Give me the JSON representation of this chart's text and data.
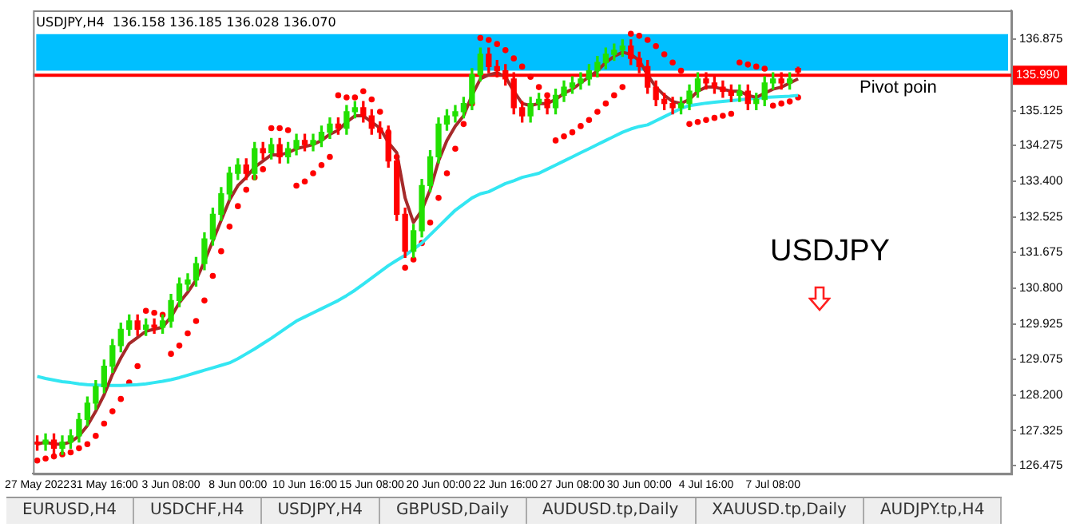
{
  "chart_data": {
    "type": "candlestick",
    "title": "USDJPY,H4  136.158 136.185 136.028 136.070",
    "categories": [
      "27 May 2022",
      null,
      null,
      null,
      null,
      null,
      null,
      null,
      "31 May 16:00",
      null,
      null,
      null,
      null,
      null,
      null,
      null,
      "3 Jun 08:00",
      null,
      null,
      null,
      null,
      null,
      null,
      null,
      "8 Jun 00:00",
      null,
      null,
      null,
      null,
      null,
      null,
      null,
      "10 Jun 16:00",
      null,
      null,
      null,
      null,
      null,
      null,
      null,
      "15 Jun 08:00",
      null,
      null,
      null,
      null,
      null,
      null,
      null,
      "20 Jun 00:00",
      null,
      null,
      null,
      null,
      null,
      null,
      null,
      "22 Jun 16:00",
      null,
      null,
      null,
      null,
      null,
      null,
      null,
      "27 Jun 08:00",
      null,
      null,
      null,
      null,
      null,
      null,
      null,
      "30 Jun 00:00",
      null,
      null,
      null,
      null,
      null,
      null,
      null,
      "4 Jul 16:00",
      null,
      null,
      null,
      null,
      null,
      null,
      null,
      "7 Jul 08:00",
      null,
      null,
      null,
      null,
      null,
      null,
      null,
      null,
      null,
      null,
      null,
      null,
      null,
      null,
      null,
      null,
      null,
      null,
      null,
      null,
      null,
      null,
      null,
      null,
      null,
      null,
      null,
      null
    ],
    "ohlc": [
      [
        127.05,
        127.2,
        126.85,
        127.0
      ],
      [
        127.0,
        127.25,
        126.85,
        127.1
      ],
      [
        127.1,
        127.25,
        126.75,
        126.9
      ],
      [
        126.9,
        127.2,
        126.75,
        127.05
      ],
      [
        127.05,
        127.35,
        126.9,
        127.2
      ],
      [
        127.2,
        127.75,
        127.05,
        127.6
      ],
      [
        127.6,
        128.15,
        127.45,
        128.0
      ],
      [
        128.0,
        128.55,
        127.85,
        128.4
      ],
      [
        128.4,
        129.05,
        128.25,
        128.9
      ],
      [
        128.9,
        129.55,
        128.75,
        129.4
      ],
      [
        129.4,
        129.95,
        129.25,
        129.8
      ],
      [
        129.8,
        130.15,
        129.65,
        130.0
      ],
      [
        130.0,
        130.15,
        129.65,
        129.8
      ],
      [
        129.8,
        130.05,
        129.65,
        129.9
      ],
      [
        129.9,
        130.05,
        129.7,
        129.85
      ],
      [
        129.85,
        130.15,
        129.7,
        130.0
      ],
      [
        130.0,
        130.65,
        129.85,
        130.5
      ],
      [
        130.5,
        131.05,
        130.35,
        130.9
      ],
      [
        130.9,
        131.15,
        130.75,
        131.0
      ],
      [
        131.0,
        131.55,
        130.85,
        131.4
      ],
      [
        131.4,
        132.15,
        131.25,
        132.0
      ],
      [
        132.0,
        132.75,
        131.85,
        132.6
      ],
      [
        132.6,
        133.25,
        132.45,
        133.1
      ],
      [
        133.1,
        133.75,
        132.95,
        133.6
      ],
      [
        133.6,
        133.95,
        133.45,
        133.8
      ],
      [
        133.8,
        133.95,
        133.45,
        133.6
      ],
      [
        133.6,
        134.35,
        133.45,
        134.2
      ],
      [
        134.2,
        134.35,
        133.95,
        134.1
      ],
      [
        134.1,
        134.45,
        133.95,
        134.3
      ],
      [
        134.3,
        134.45,
        133.85,
        134.0
      ],
      [
        134.0,
        134.35,
        133.85,
        134.2
      ],
      [
        134.2,
        134.55,
        134.05,
        134.4
      ],
      [
        134.4,
        134.55,
        134.15,
        134.3
      ],
      [
        134.3,
        134.55,
        134.15,
        134.4
      ],
      [
        134.4,
        134.75,
        134.25,
        134.6
      ],
      [
        134.6,
        134.95,
        134.45,
        134.8
      ],
      [
        134.8,
        134.95,
        134.55,
        134.7
      ],
      [
        134.7,
        135.25,
        134.55,
        135.1
      ],
      [
        135.1,
        135.35,
        134.95,
        135.2
      ],
      [
        135.2,
        135.35,
        134.85,
        135.0
      ],
      [
        135.0,
        135.15,
        134.55,
        134.7
      ],
      [
        134.7,
        134.85,
        134.45,
        134.6
      ],
      [
        134.6,
        134.75,
        133.75,
        133.9
      ],
      [
        133.9,
        134.05,
        132.45,
        132.6
      ],
      [
        132.6,
        132.75,
        131.55,
        131.7
      ],
      [
        131.7,
        132.35,
        131.55,
        132.2
      ],
      [
        132.2,
        133.45,
        132.05,
        133.3
      ],
      [
        133.3,
        134.15,
        133.15,
        134.0
      ],
      [
        134.0,
        134.95,
        133.85,
        134.8
      ],
      [
        134.8,
        135.15,
        134.65,
        135.0
      ],
      [
        135.0,
        135.25,
        134.85,
        135.1
      ],
      [
        135.1,
        135.45,
        134.95,
        135.3
      ],
      [
        135.3,
        136.15,
        135.15,
        136.0
      ],
      [
        136.0,
        136.65,
        135.85,
        136.5
      ],
      [
        136.5,
        136.65,
        136.05,
        136.2
      ],
      [
        136.2,
        136.35,
        135.95,
        136.1
      ],
      [
        136.1,
        136.25,
        135.75,
        135.9
      ],
      [
        135.9,
        136.05,
        135.05,
        135.2
      ],
      [
        135.2,
        135.35,
        134.85,
        135.0
      ],
      [
        135.0,
        135.45,
        134.85,
        135.3
      ],
      [
        135.3,
        135.55,
        135.15,
        135.4
      ],
      [
        135.4,
        135.55,
        135.05,
        135.2
      ],
      [
        135.2,
        135.65,
        135.05,
        135.5
      ],
      [
        135.5,
        135.85,
        135.35,
        135.7
      ],
      [
        135.7,
        135.95,
        135.55,
        135.8
      ],
      [
        135.8,
        136.05,
        135.65,
        135.9
      ],
      [
        135.9,
        136.25,
        135.75,
        136.1
      ],
      [
        136.1,
        136.45,
        135.95,
        136.3
      ],
      [
        136.3,
        136.65,
        136.15,
        136.5
      ],
      [
        136.5,
        136.75,
        136.35,
        136.6
      ],
      [
        136.6,
        136.85,
        136.45,
        136.7
      ],
      [
        136.7,
        136.85,
        136.25,
        136.4
      ],
      [
        136.4,
        136.55,
        136.05,
        136.2
      ],
      [
        136.2,
        136.35,
        135.55,
        135.7
      ],
      [
        135.7,
        135.85,
        135.25,
        135.4
      ],
      [
        135.4,
        135.55,
        135.15,
        135.3
      ],
      [
        135.3,
        135.45,
        135.05,
        135.2
      ],
      [
        135.2,
        135.45,
        135.05,
        135.3
      ],
      [
        135.3,
        135.75,
        135.15,
        135.6
      ],
      [
        135.6,
        136.05,
        135.45,
        135.9
      ],
      [
        135.9,
        136.05,
        135.65,
        135.8
      ],
      [
        135.8,
        135.95,
        135.55,
        135.7
      ],
      [
        135.7,
        135.85,
        135.45,
        135.6
      ],
      [
        135.6,
        135.75,
        135.35,
        135.5
      ],
      [
        135.5,
        135.75,
        135.35,
        135.6
      ],
      [
        135.6,
        135.75,
        135.15,
        135.3
      ],
      [
        135.3,
        135.55,
        135.15,
        135.4
      ],
      [
        135.4,
        135.95,
        135.25,
        135.8
      ],
      [
        135.8,
        136.05,
        135.65,
        135.9
      ],
      [
        135.9,
        136.05,
        135.65,
        135.8
      ],
      [
        135.8,
        136.05,
        135.65,
        135.9
      ],
      [
        136.158,
        136.185,
        136.028,
        136.07
      ],
      null,
      null,
      null,
      null,
      null,
      null,
      null,
      null,
      null,
      null,
      null,
      null,
      null,
      null,
      null,
      null,
      null,
      null,
      null,
      null,
      null,
      null,
      null,
      null,
      null
    ],
    "series": [
      {
        "type": "line",
        "color": "#a52a2a",
        "marker": "none",
        "values": [
          127.0,
          127.05,
          127.0,
          127.0,
          127.05,
          127.2,
          127.45,
          127.8,
          128.2,
          128.7,
          129.1,
          129.45,
          129.6,
          129.75,
          129.8,
          129.85,
          130.1,
          130.45,
          130.7,
          131.0,
          131.45,
          131.95,
          132.45,
          132.95,
          133.3,
          133.5,
          133.75,
          133.9,
          134.05,
          134.05,
          134.1,
          134.2,
          134.25,
          134.3,
          134.4,
          134.55,
          134.65,
          134.85,
          135.0,
          135.0,
          134.85,
          134.7,
          134.35,
          134.1,
          133.0,
          132.4,
          132.7,
          133.2,
          133.9,
          134.4,
          134.75,
          135.0,
          135.5,
          135.9,
          136.0,
          136.05,
          135.95,
          135.6,
          135.3,
          135.25,
          135.3,
          135.3,
          135.4,
          135.55,
          135.65,
          135.8,
          135.95,
          136.1,
          136.3,
          136.45,
          136.55,
          136.5,
          136.35,
          136.0,
          135.7,
          135.5,
          135.35,
          135.3,
          135.4,
          135.6,
          135.7,
          135.7,
          135.65,
          135.6,
          135.6,
          135.5,
          135.45,
          135.55,
          135.65,
          135.7,
          135.8,
          135.9,
          null,
          null,
          null,
          null,
          null,
          null,
          null,
          null,
          null,
          null,
          null,
          null,
          null,
          null,
          null,
          null,
          null,
          null,
          null,
          null,
          null,
          null,
          null,
          null,
          null
        ]
      },
      {
        "type": "line",
        "color": "#33e6f2",
        "marker": "none",
        "values": [
          128.65,
          128.6,
          128.56,
          128.52,
          128.5,
          128.47,
          128.45,
          128.44,
          128.43,
          128.43,
          128.43,
          128.44,
          128.45,
          128.47,
          128.5,
          128.53,
          128.57,
          128.62,
          128.68,
          128.74,
          128.8,
          128.86,
          128.92,
          128.98,
          129.08,
          129.2,
          129.32,
          129.45,
          129.58,
          129.72,
          129.86,
          130.0,
          130.1,
          130.2,
          130.3,
          130.4,
          130.5,
          130.62,
          130.75,
          130.9,
          131.05,
          131.2,
          131.35,
          131.48,
          131.6,
          131.75,
          131.9,
          132.1,
          132.3,
          132.5,
          132.7,
          132.85,
          133.0,
          133.1,
          133.15,
          133.25,
          133.35,
          133.42,
          133.5,
          133.55,
          133.6,
          133.7,
          133.8,
          133.9,
          134.0,
          134.1,
          134.2,
          134.3,
          134.4,
          134.5,
          134.6,
          134.68,
          134.74,
          134.78,
          134.88,
          134.98,
          135.08,
          135.18,
          135.25,
          135.28,
          135.31,
          135.33,
          135.35,
          135.37,
          135.39,
          135.41,
          135.43,
          135.45,
          135.46,
          135.47,
          135.48,
          135.5,
          null,
          null,
          null,
          null,
          null,
          null,
          null,
          null,
          null,
          null,
          null,
          null,
          null,
          null,
          null,
          null,
          null,
          null,
          null,
          null,
          null,
          null,
          null,
          null,
          null
        ]
      },
      {
        "type": "scatter",
        "color": "#ff0000",
        "marker": "circle",
        "values": [
          126.6,
          126.65,
          126.7,
          126.75,
          126.8,
          126.9,
          127.0,
          127.2,
          127.5,
          127.8,
          128.1,
          128.5,
          128.9,
          130.25,
          130.2,
          130.15,
          129.2,
          129.4,
          129.7,
          130.0,
          130.5,
          131.1,
          131.7,
          132.3,
          132.8,
          133.2,
          133.5,
          133.7,
          134.7,
          134.7,
          134.65,
          133.3,
          133.4,
          133.6,
          133.8,
          134.0,
          135.5,
          135.45,
          135.45,
          135.6,
          135.4,
          135.1,
          134.6,
          134.0,
          131.3,
          131.5,
          131.9,
          132.4,
          133.0,
          133.6,
          134.2,
          134.8,
          135.3,
          136.9,
          136.85,
          136.75,
          136.6,
          136.4,
          136.2,
          135.95,
          135.7,
          135.5,
          134.4,
          134.5,
          134.6,
          134.75,
          134.9,
          135.1,
          135.3,
          135.5,
          135.7,
          137.0,
          136.95,
          136.85,
          136.7,
          136.5,
          136.3,
          136.1,
          134.8,
          134.85,
          134.9,
          134.95,
          135.0,
          135.05,
          136.3,
          136.25,
          136.2,
          136.15,
          135.25,
          135.3,
          135.35,
          135.45,
          null,
          null,
          null,
          null,
          null,
          null,
          null,
          null,
          null,
          null,
          null,
          null,
          null,
          null,
          null,
          null,
          null,
          null,
          null,
          null,
          null,
          null,
          null,
          null,
          null
        ]
      }
    ],
    "ylim": [
      126.28,
      137.57
    ],
    "yticks": [
      {
        "value": 126.475,
        "label": "126.475"
      },
      {
        "value": 127.325,
        "label": "127.325"
      },
      {
        "value": 128.2,
        "label": "128.200"
      },
      {
        "value": 129.075,
        "label": "129.075"
      },
      {
        "value": 129.925,
        "label": "129.925"
      },
      {
        "value": 130.8,
        "label": "130.800"
      },
      {
        "value": 131.675,
        "label": "131.675"
      },
      {
        "value": 132.525,
        "label": "132.525"
      },
      {
        "value": 133.4,
        "label": "133.400"
      },
      {
        "value": 134.275,
        "label": "134.275"
      },
      {
        "value": 135.125,
        "label": "135.125"
      },
      {
        "value": 136.875,
        "label": "136.875"
      }
    ],
    "grid": false,
    "legend": false,
    "ref_lines": [
      {
        "axis": "y",
        "value": 135.99,
        "label": "135.990",
        "color": "#ff0000"
      }
    ],
    "bands": [
      {
        "axis": "y",
        "from": 136.1,
        "to": 136.99,
        "color": "#00bfff"
      }
    ],
    "annotations": [
      {
        "text": "Pivot poin",
        "y": 135.99
      },
      "USDJPY",
      "EURUSD,H4",
      "USDCHF,H4",
      "USDJPY,H4",
      "GBPUSD,Daily",
      "AUDUSD.tp,Daily",
      "XAUUSD.tp,Daily",
      "AUDJPY.tp,H4"
    ]
  }
}
